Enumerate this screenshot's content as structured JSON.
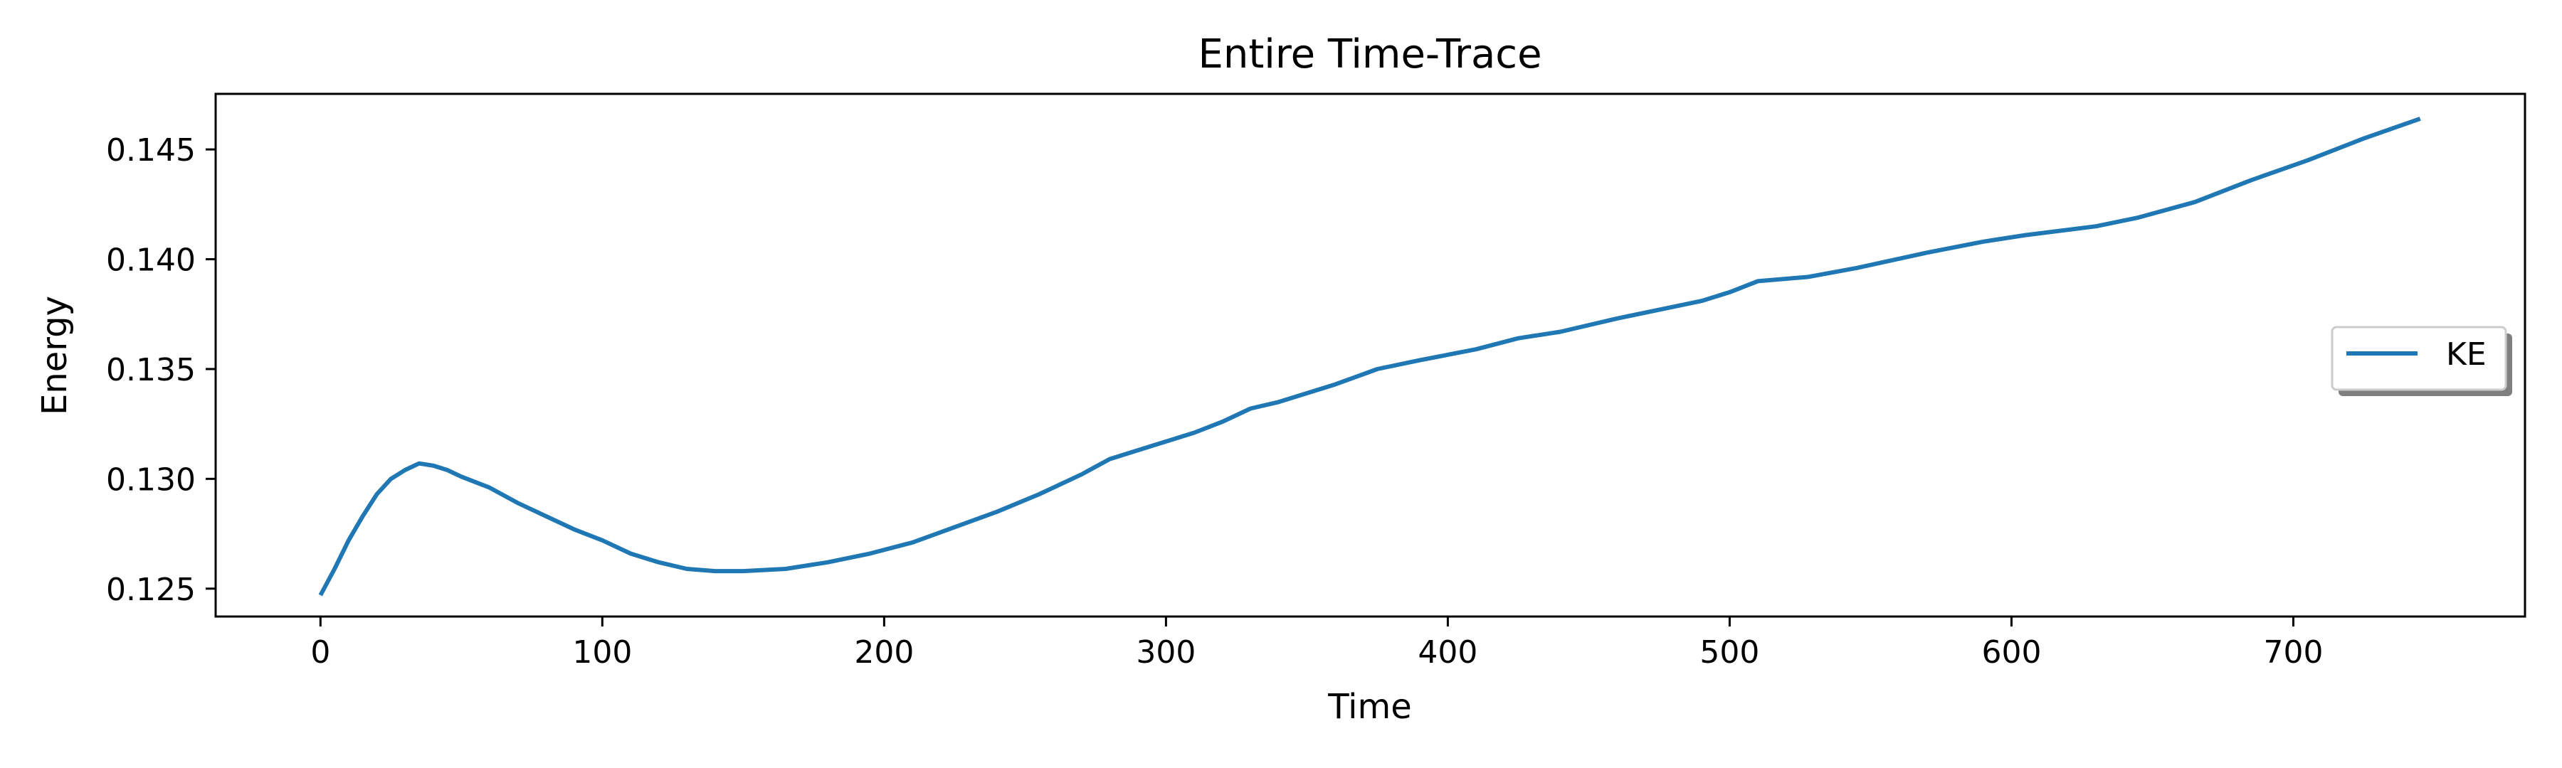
{
  "chart_data": {
    "type": "line",
    "title": "Entire Time-Trace",
    "xlabel": "Time",
    "ylabel": "Energy",
    "xlim": [
      -37.2,
      782.2
    ],
    "ylim": [
      0.12373,
      0.14753
    ],
    "xticks": [
      0,
      100,
      200,
      300,
      400,
      500,
      600,
      700
    ],
    "xtick_labels": [
      "0",
      "100",
      "200",
      "300",
      "400",
      "500",
      "600",
      "700"
    ],
    "yticks": [
      0.125,
      0.13,
      0.135,
      0.14,
      0.145
    ],
    "ytick_labels": [
      "0.125",
      "0.130",
      "0.135",
      "0.140",
      "0.145"
    ],
    "grid": false,
    "legend": {
      "position": "center-right",
      "entries": [
        "KE"
      ]
    },
    "series": [
      {
        "name": "KE",
        "color": "#1f77b4",
        "x": [
          0,
          5,
          10,
          15,
          20,
          25,
          30,
          35,
          40,
          45,
          50,
          60,
          70,
          80,
          90,
          100,
          110,
          120,
          130,
          140,
          150,
          165,
          180,
          195,
          210,
          225,
          240,
          255,
          270,
          280,
          295,
          310,
          320,
          330,
          340,
          360,
          375,
          390,
          410,
          425,
          440,
          460,
          475,
          490,
          500,
          510,
          528,
          545,
          570,
          590,
          605,
          630,
          645,
          665,
          685,
          705,
          725,
          745
        ],
        "y": [
          0.1247,
          0.1259,
          0.1272,
          0.1283,
          0.1293,
          0.13,
          0.1304,
          0.1307,
          0.1306,
          0.1304,
          0.1301,
          0.1296,
          0.1289,
          0.1283,
          0.1277,
          0.1272,
          0.1266,
          0.1262,
          0.1259,
          0.1258,
          0.1258,
          0.1259,
          0.1262,
          0.1266,
          0.1271,
          0.1278,
          0.1285,
          0.1293,
          0.1302,
          0.1309,
          0.1315,
          0.1321,
          0.1326,
          0.1332,
          0.1335,
          0.1343,
          0.135,
          0.1354,
          0.1359,
          0.1364,
          0.1367,
          0.1373,
          0.1377,
          0.1381,
          0.1385,
          0.139,
          0.1392,
          0.1396,
          0.1403,
          0.1408,
          0.1411,
          0.1415,
          0.1419,
          0.1426,
          0.1436,
          0.1445,
          0.1455,
          0.1464
        ]
      }
    ]
  }
}
